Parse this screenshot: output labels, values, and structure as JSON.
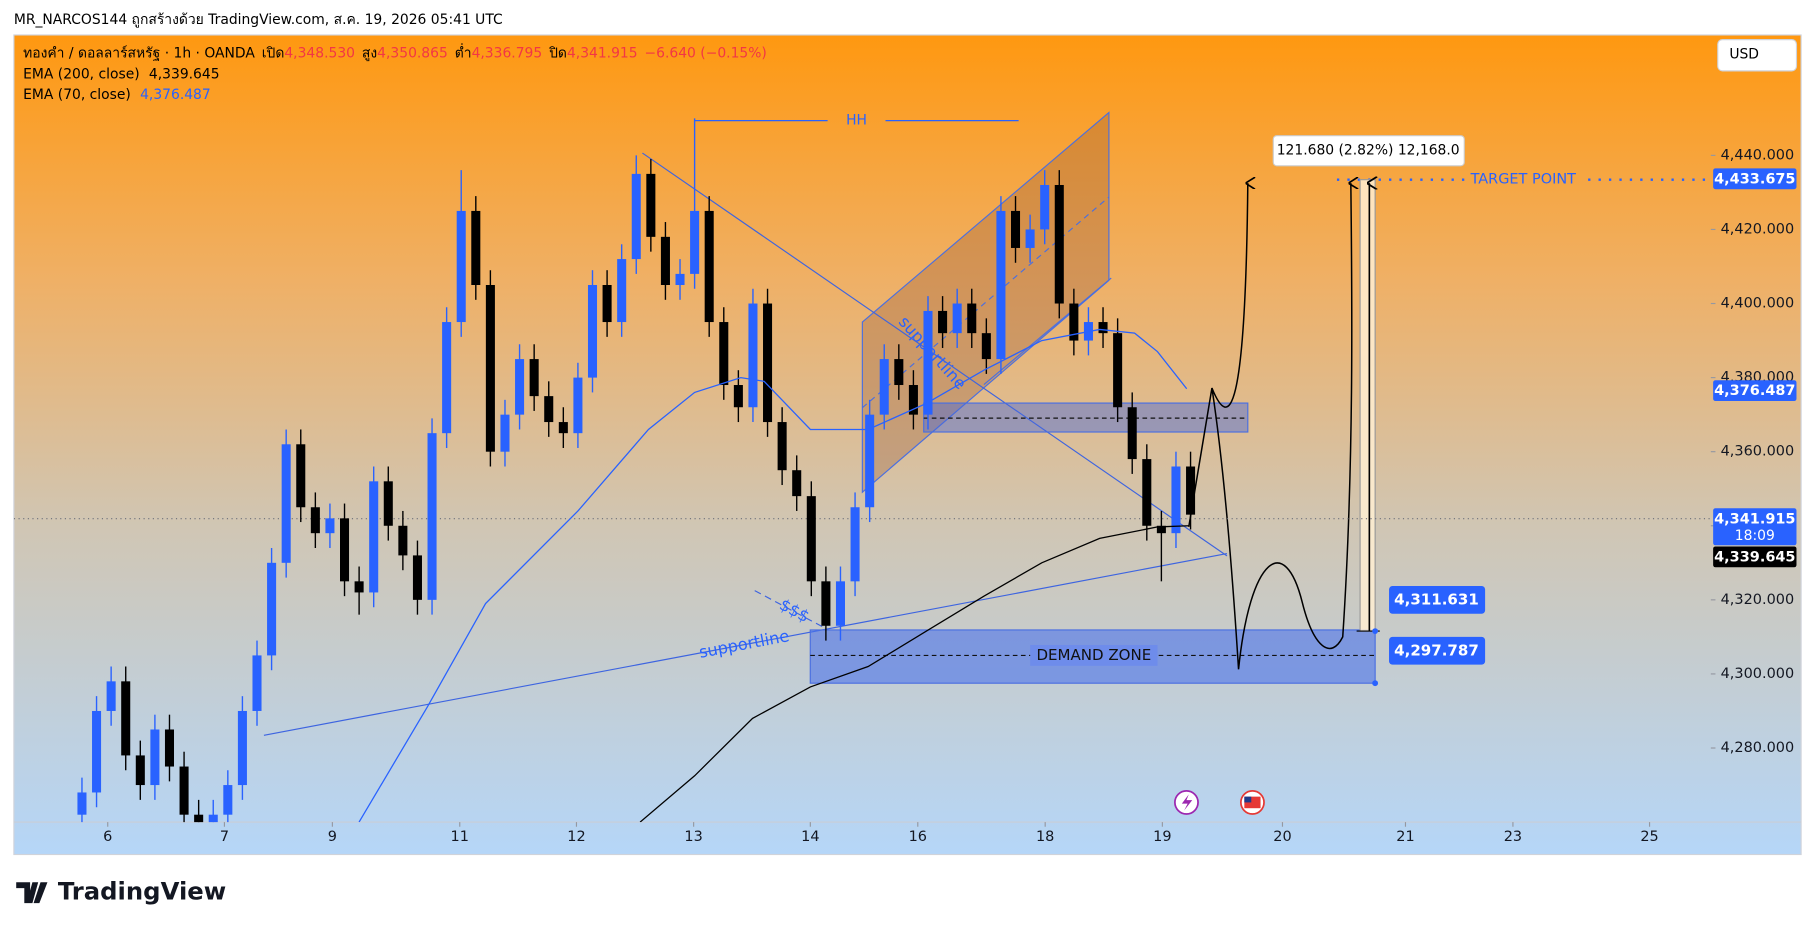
{
  "header": {
    "attribution": "MR_NARCOS144 ถูกสร้างด้วย TradingView.com, ส.ค. 19, 2026 05:41 UTC"
  },
  "chart_data": {
    "type": "candlestick",
    "symbol": "ทองคำ / ดอลลาร์สหรัฐ · 1h · OANDA",
    "ohlc_labels": [
      {
        "label": "เปิด",
        "value": "4,348.530"
      },
      {
        "label": "สูง",
        "value": "4,350.865"
      },
      {
        "label": "ต่ำ",
        "value": "4,336.795"
      },
      {
        "label": "ปิด",
        "value": "4,341.915"
      }
    ],
    "change": "−6.640 (−0.15%)",
    "currency": "USD",
    "up_color": "#2962ff",
    "down_color": "#000000",
    "x": [
      14,
      17,
      20,
      23,
      26,
      29,
      32,
      35,
      38,
      41,
      44,
      47,
      50,
      53,
      56,
      59,
      62,
      65,
      68,
      71,
      74,
      77,
      80,
      83,
      86,
      89,
      92,
      95,
      98,
      101,
      104,
      107,
      110,
      113,
      116,
      119,
      122,
      125,
      128,
      131,
      134,
      137,
      140,
      143,
      146,
      149,
      152,
      155,
      158,
      161,
      164,
      167,
      170,
      173,
      176,
      179,
      182,
      185,
      188,
      191,
      194,
      197,
      200,
      203,
      206,
      209,
      212,
      215,
      218,
      221,
      224,
      227,
      230,
      233,
      236,
      239,
      242
    ],
    "open": [
      4262,
      4268,
      4290,
      4298,
      4278,
      4270,
      4285,
      4275,
      4262,
      4255,
      4262,
      4270,
      4290,
      4305,
      4330,
      4362,
      4345,
      4338,
      4342,
      4325,
      4322,
      4352,
      4340,
      4332,
      4320,
      4365,
      4395,
      4425,
      4405,
      4360,
      4370,
      4385,
      4375,
      4368,
      4365,
      4380,
      4405,
      4395,
      4412,
      4435,
      4418,
      4405,
      4408,
      4425,
      4395,
      4378,
      4372,
      4400,
      4368,
      4355,
      4348,
      4325,
      4313,
      4325,
      4345,
      4370,
      4385,
      4378,
      4370,
      4398,
      4392,
      4400,
      4392,
      4385,
      4425,
      4415,
      4420,
      4432,
      4400,
      4390,
      4395,
      4392,
      4372,
      4358,
      4340,
      4338,
      4356
    ],
    "high": [
      4272,
      4294,
      4302,
      4302,
      4282,
      4289,
      4289,
      4279,
      4266,
      4266,
      4274,
      4294,
      4309,
      4334,
      4366,
      4366,
      4349,
      4346,
      4346,
      4329,
      4356,
      4356,
      4344,
      4336,
      4369,
      4399,
      4436,
      4429,
      4409,
      4374,
      4389,
      4389,
      4379,
      4372,
      4384,
      4409,
      4409,
      4416,
      4440,
      4439,
      4422,
      4412,
      4450,
      4429,
      4399,
      4382,
      4404,
      4404,
      4372,
      4359,
      4352,
      4329,
      4329,
      4349,
      4374,
      4389,
      4389,
      4382,
      4402,
      4402,
      4404,
      4404,
      4396,
      4429,
      4429,
      4424,
      4436,
      4436,
      4404,
      4399,
      4399,
      4396,
      4376,
      4362,
      4344,
      4360,
      4360
    ],
    "low": [
      4258,
      4264,
      4286,
      4274,
      4266,
      4266,
      4271,
      4258,
      4251,
      4251,
      4258,
      4266,
      4286,
      4301,
      4326,
      4341,
      4334,
      4334,
      4321,
      4316,
      4318,
      4336,
      4328,
      4316,
      4316,
      4361,
      4391,
      4401,
      4356,
      4356,
      4366,
      4371,
      4364,
      4361,
      4361,
      4376,
      4391,
      4391,
      4408,
      4414,
      4401,
      4401,
      4404,
      4391,
      4374,
      4368,
      4368,
      4364,
      4351,
      4344,
      4321,
      4309,
      4309,
      4321,
      4341,
      4366,
      4374,
      4366,
      4366,
      4388,
      4388,
      4388,
      4381,
      4381,
      4411,
      4411,
      4416,
      4396,
      4386,
      4386,
      4388,
      4368,
      4354,
      4336,
      4325,
      4334,
      4339
    ],
    "close": [
      4268,
      4290,
      4298,
      4278,
      4270,
      4285,
      4275,
      4262,
      4255,
      4262,
      4270,
      4290,
      4305,
      4330,
      4362,
      4345,
      4338,
      4342,
      4325,
      4322,
      4352,
      4340,
      4332,
      4320,
      4365,
      4395,
      4425,
      4405,
      4360,
      4370,
      4385,
      4375,
      4368,
      4365,
      4380,
      4405,
      4395,
      4412,
      4435,
      4418,
      4405,
      4408,
      4425,
      4395,
      4378,
      4372,
      4400,
      4368,
      4355,
      4348,
      4325,
      4313,
      4325,
      4345,
      4370,
      4385,
      4378,
      4370,
      4398,
      4392,
      4400,
      4392,
      4385,
      4425,
      4415,
      4420,
      4432,
      4400,
      4390,
      4395,
      4392,
      4372,
      4358,
      4340,
      4338,
      4356,
      4343
    ],
    "series": [
      {
        "name": "EMA (200, close)",
        "last": "4,339.645",
        "color": "#000000",
        "x": [
          128.8,
          140,
          151.9,
          163.8,
          175.7,
          187.6,
          199.5,
          211.4,
          223.3,
          235.2,
          241.7
        ],
        "values": [
          4260,
          4272.5,
          4288,
          4296.5,
          4302,
          4311.5,
          4321,
          4330,
          4336.6,
          4339.7,
          4340
        ]
      },
      {
        "name": "EMA (70, close)",
        "last": "4,376.487",
        "color": "#2962ff",
        "x": [
          71,
          85,
          97,
          116,
          130.5,
          140,
          149.5,
          154.3,
          163.8,
          175.7,
          187.6,
          199.5,
          211.4,
          223.3,
          230.5,
          235.2,
          241.2
        ],
        "values": [
          4260,
          4291,
          4319,
          4344,
          4366,
          4376,
          4380,
          4379,
          4366,
          4366,
          4373,
          4382,
          4390,
          4393,
          4392,
          4387,
          4377
        ]
      }
    ],
    "xlim": [
      0,
      349
    ],
    "xticks": [
      {
        "value": 19.3,
        "label": "6"
      },
      {
        "value": 43.3,
        "label": "7"
      },
      {
        "value": 65.5,
        "label": "9"
      },
      {
        "value": 91.7,
        "label": "11"
      },
      {
        "value": 115.7,
        "label": "12"
      },
      {
        "value": 139.8,
        "label": "13"
      },
      {
        "value": 163.8,
        "label": "14"
      },
      {
        "value": 185.9,
        "label": "16"
      },
      {
        "value": 212.1,
        "label": "18"
      },
      {
        "value": 236.2,
        "label": "19"
      },
      {
        "value": 260.9,
        "label": "20"
      },
      {
        "value": 286.2,
        "label": "21"
      },
      {
        "value": 308.3,
        "label": "23"
      },
      {
        "value": 336.4,
        "label": "25"
      }
    ],
    "ylim": [
      4260,
      4472.5
    ],
    "yticks": [
      {
        "value": 4280,
        "label": "4,280.000"
      },
      {
        "value": 4300,
        "label": "4,300.000"
      },
      {
        "value": 4320,
        "label": "4,320.000"
      },
      {
        "value": 4340,
        "label": "4,340.000"
      },
      {
        "value": 4360,
        "label": "4,360.000"
      },
      {
        "value": 4380,
        "label": "4,380.000"
      },
      {
        "value": 4400,
        "label": "4,400.000"
      },
      {
        "value": 4420,
        "label": "4,420.000"
      },
      {
        "value": 4440,
        "label": "4,440.000"
      }
    ],
    "price_tags": [
      {
        "value": 4433.675,
        "label": "4,433.675",
        "color": "#2962ff"
      },
      {
        "value": 4376.487,
        "label": "4,376.487",
        "color": "#2962ff"
      },
      {
        "value": 4341.915,
        "label": "4,341.915",
        "color": "#2962ff"
      },
      {
        "value": 4339.645,
        "label": "4,339.645",
        "color": "#000000"
      }
    ],
    "countdown": "18:09",
    "annotations": {
      "hh": "HH",
      "channel_label": "supportline",
      "trend_label": "supportline",
      "liquidity": "$$$",
      "demand_zone": "DEMAND ZONE",
      "target": "TARGET POINT",
      "measure": "121.680 (2.82%) 12,168.0",
      "level_1": "4,311.631",
      "level_2": "4,297.787"
    }
  },
  "footer": {
    "logo": "TradingView"
  }
}
